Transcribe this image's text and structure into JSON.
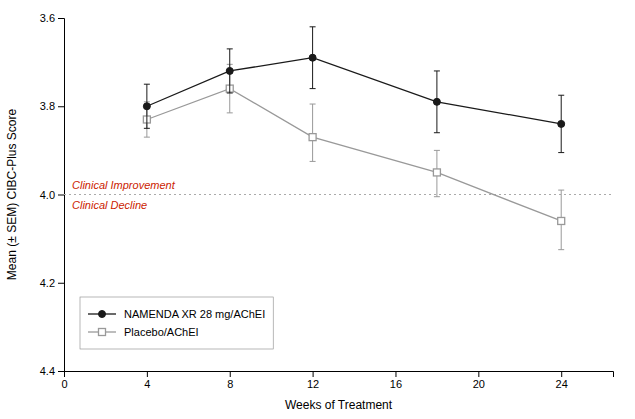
{
  "chart_data": {
    "type": "line",
    "x": [
      4,
      8,
      12,
      18,
      24
    ],
    "series": [
      {
        "name": "NAMENDA XR 28 mg/AChEI",
        "color": "#1a1a1a",
        "marker": "circle",
        "values": [
          3.8,
          3.72,
          3.69,
          3.79,
          3.84
        ],
        "error_lo": [
          0.05,
          0.05,
          0.07,
          0.07,
          0.065
        ],
        "error_hi": [
          0.05,
          0.05,
          0.07,
          0.07,
          0.065
        ]
      },
      {
        "name": "Placebo/AChEI",
        "color": "#999999",
        "marker": "square",
        "values": [
          3.83,
          3.76,
          3.87,
          3.95,
          4.06
        ],
        "error_lo": [
          0.04,
          0.055,
          0.075,
          0.05,
          0.07
        ],
        "error_hi": [
          0.04,
          0.055,
          0.055,
          0.055,
          0.065
        ]
      }
    ],
    "reference_line": {
      "value": 4.0,
      "color": "#aaaaaa",
      "line_style": "dotted"
    },
    "annotations": [
      {
        "text": "Clinical Improvement",
        "color": "#cc2200"
      },
      {
        "text": "Clinical Decline",
        "color": "#cc2200"
      }
    ],
    "x_label": "Weeks of Treatment",
    "y_label": "Mean (± SEM) CIBC-Plus Score",
    "xlim": [
      0,
      26.5
    ],
    "ylim": [
      4.4,
      3.6
    ],
    "xticks": [
      0,
      4,
      8,
      12,
      16,
      20,
      24
    ],
    "yticks": [
      3.6,
      3.8,
      {
        "value": 4.0,
        "label": "4.0"
      },
      4.2,
      4.4
    ],
    "grid": false,
    "legend": "lower left"
  }
}
